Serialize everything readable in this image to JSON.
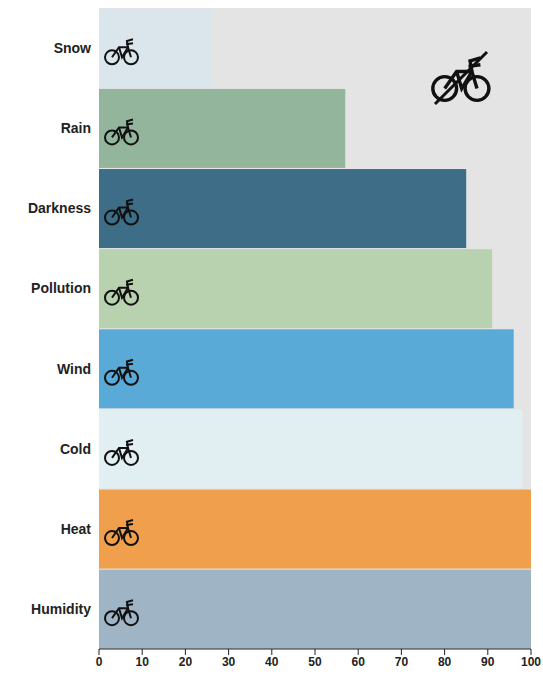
{
  "chart_data": {
    "type": "bar",
    "orientation": "horizontal",
    "categories": [
      "Snow",
      "Rain",
      "Darkness",
      "Pollution",
      "Wind",
      "Cold",
      "Heat",
      "Humidity"
    ],
    "values": [
      26,
      57,
      85,
      91,
      96,
      98,
      100,
      100
    ],
    "colors": [
      "#dbe6ec",
      "#93b59c",
      "#3e6d88",
      "#b8d1ae",
      "#5aaad8",
      "#e2eff2",
      "#f0a04c",
      "#9fb4c4"
    ],
    "xlim": [
      0,
      100
    ],
    "xticks": [
      0,
      10,
      20,
      30,
      40,
      50,
      60,
      70,
      80,
      90,
      100
    ],
    "grid": false
  }
}
